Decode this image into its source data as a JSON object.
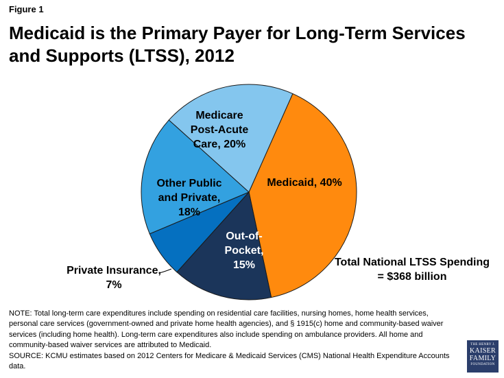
{
  "figure_label": "Figure 1",
  "title": "Medicaid is the Primary Payer for Long-Term Services and Supports (LTSS), 2012",
  "chart_data": {
    "type": "pie",
    "slices": [
      {
        "label": "Medicaid, 40%",
        "value": 40,
        "color": "#ff8a0e"
      },
      {
        "label": "Out-of-Pocket, 15%",
        "value": 15,
        "color": "#1b355a"
      },
      {
        "label": "Private Insurance, 7%",
        "value": 7,
        "color": "#0570c0"
      },
      {
        "label": "Other Public and Private, 18%",
        "value": 18,
        "color": "#33a1e0"
      },
      {
        "label": "Medicare Post-Acute Care, 20%",
        "value": 20,
        "color": "#84c6ee"
      }
    ],
    "label_lines": {
      "medicaid": [
        "Medicaid, 40%"
      ],
      "out_of_pocket": [
        "Out-of-",
        "Pocket,",
        "15%"
      ],
      "private_insurance": [
        "Private Insurance,",
        "7%"
      ],
      "other": [
        "Other Public",
        "and Private,",
        "18%"
      ],
      "medicare": [
        "Medicare",
        "Post-Acute",
        "Care, 20%"
      ]
    },
    "total_lines": [
      "Total National LTSS Spending",
      "= $368 billion"
    ]
  },
  "notes": {
    "note": "NOTE: Total long-term care expenditures include spending on residential care facilities, nursing homes, home health services, personal care services (government-owned and private home health agencies), and § 1915(c) home and community-based waiver services (including home health). Long-term care expenditures also include spending on ambulance providers. All home and community-based waiver services are attributed to Medicaid.",
    "source": "SOURCE: KCMU estimates based on 2012 Centers for Medicare & Medicaid Services (CMS) National Health Expenditure Accounts data."
  },
  "logo": {
    "line1": "THE HENRY J.",
    "line2": "KAISER",
    "line3": "FAMILY",
    "line4": "FOUNDATION"
  }
}
